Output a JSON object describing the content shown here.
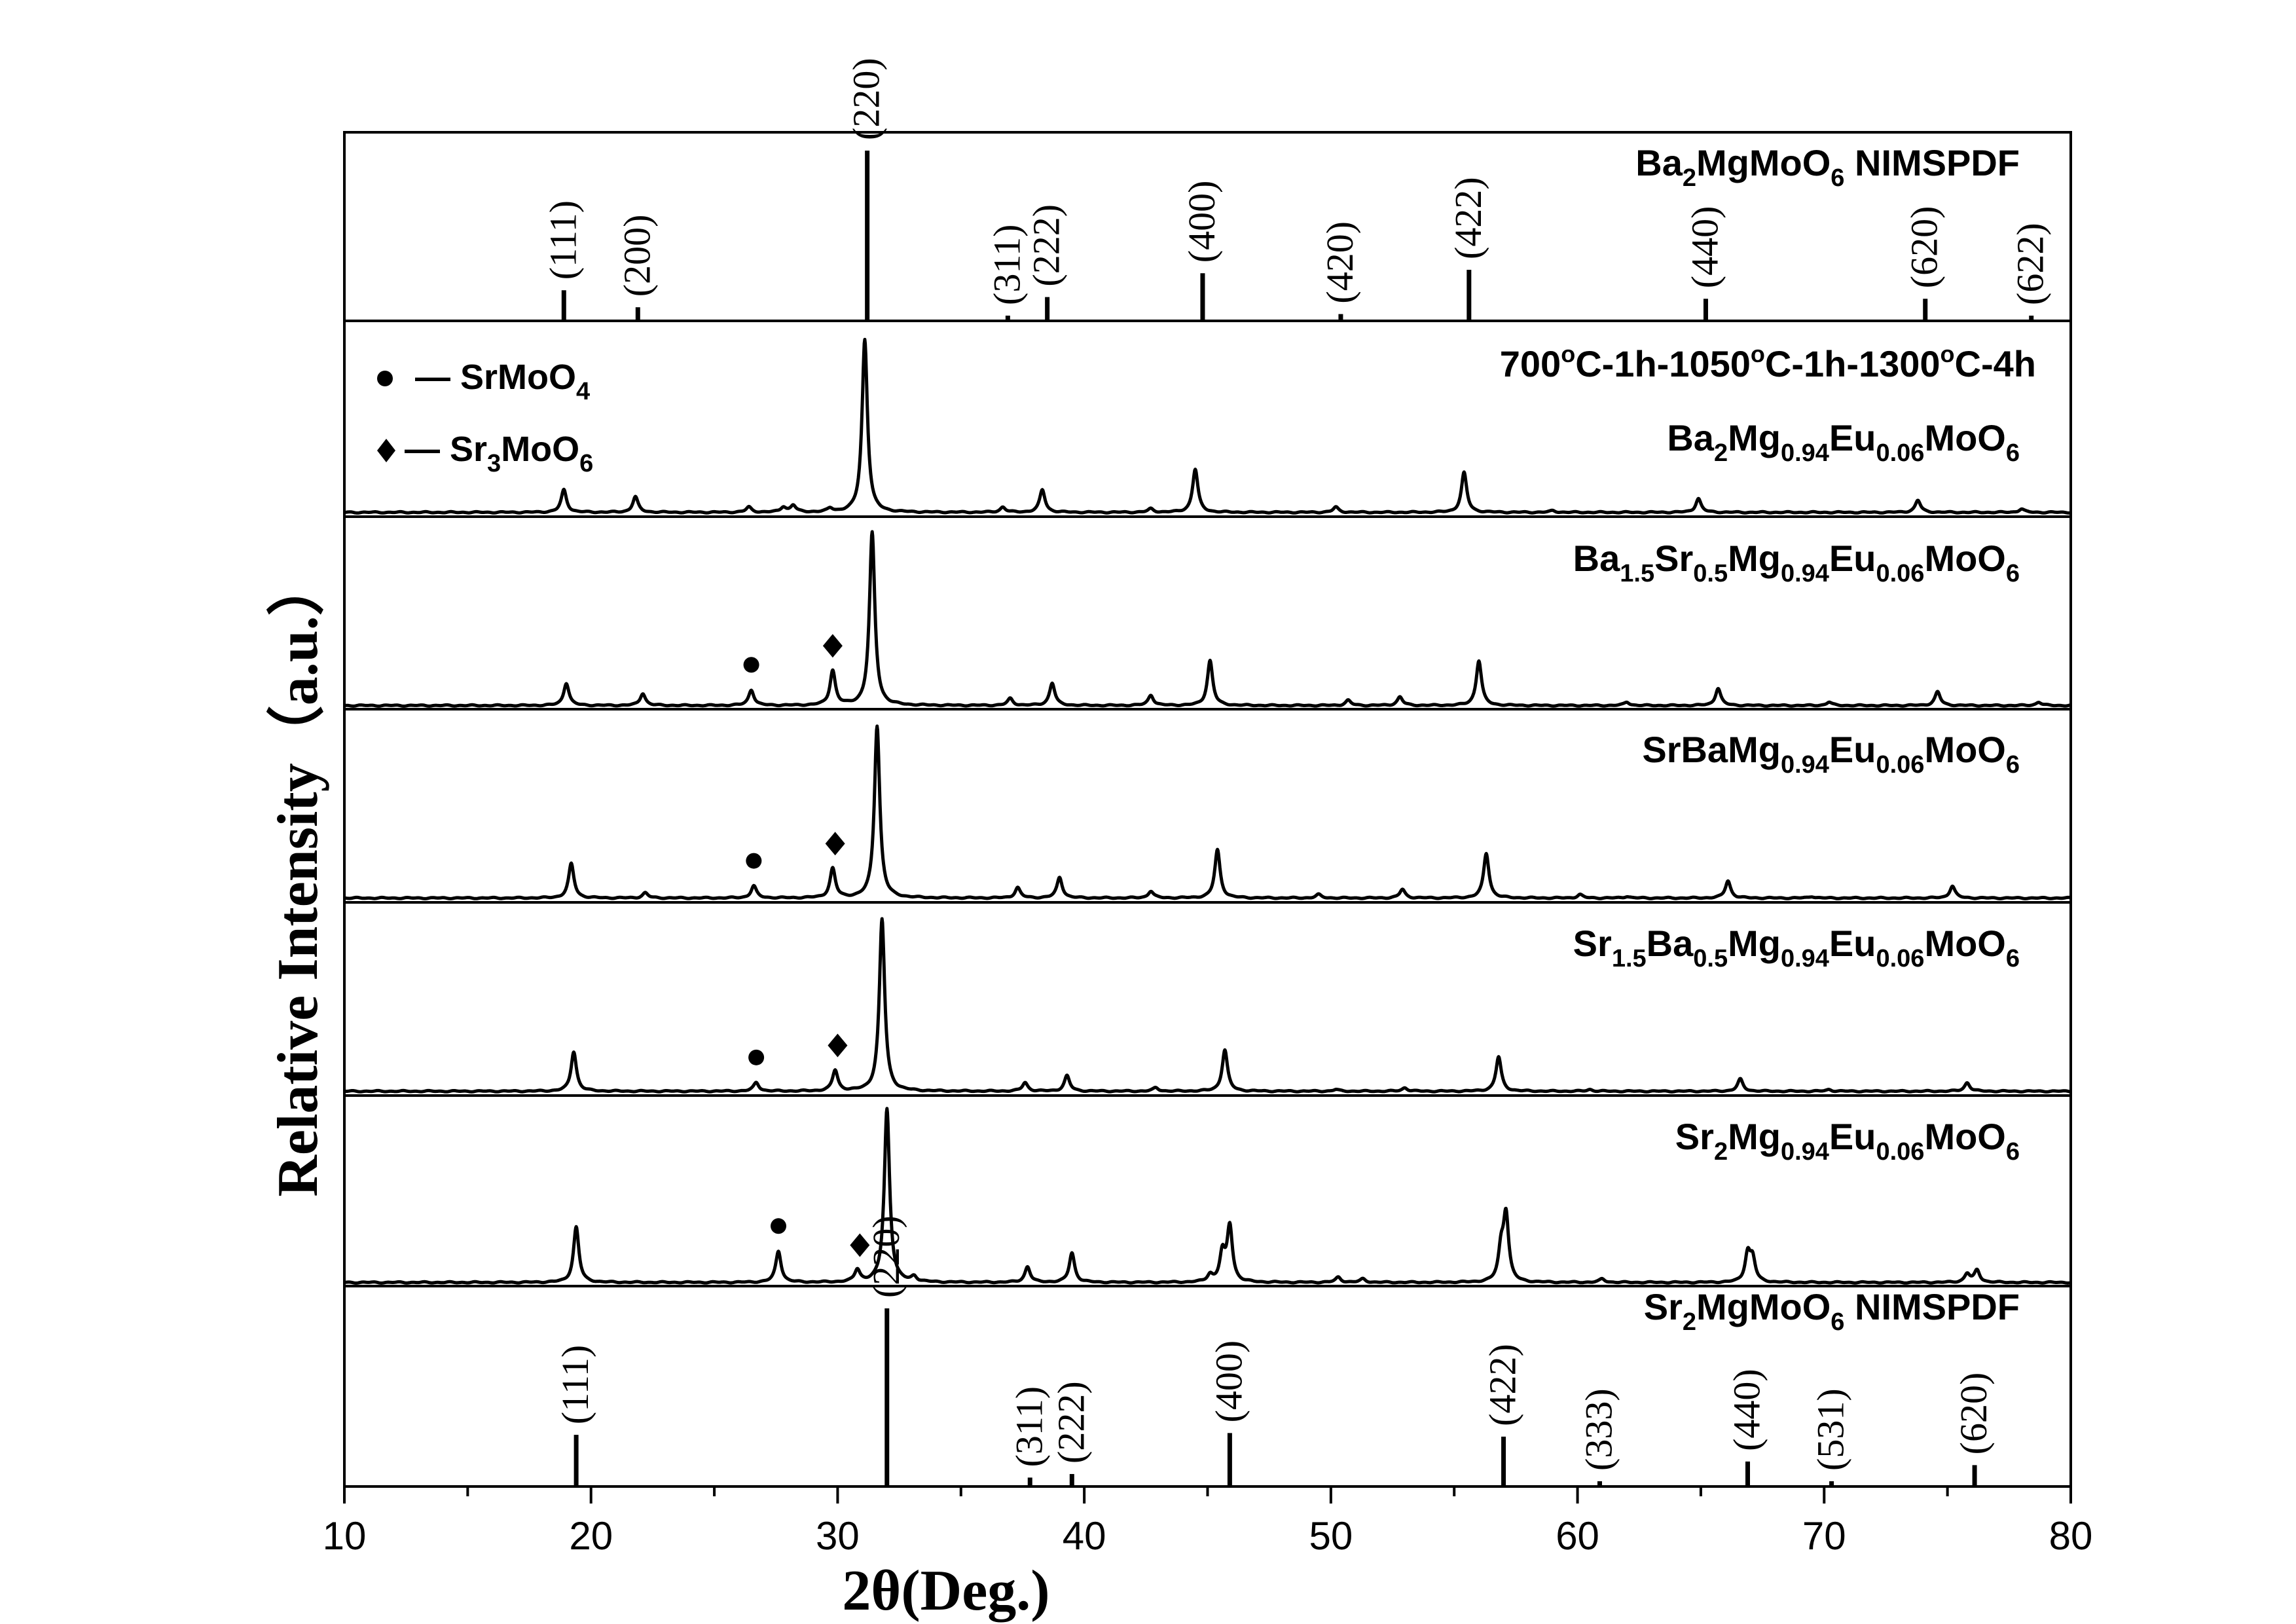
{
  "chart_data": {
    "type": "line",
    "xlabel": "2θ(Deg.)",
    "ylabel": "Relative Intensity（a.u.）",
    "xlim": [
      10,
      80
    ],
    "x_ticks": [
      "10",
      "20",
      "30",
      "40",
      "50",
      "60",
      "70",
      "80"
    ],
    "grid": false,
    "legend": {
      "position": "top-left",
      "entries": [
        {
          "symbol": "circle",
          "label": "— SrMoO",
          "sub": "4"
        },
        {
          "symbol": "diamond",
          "label": "— Sr",
          "sub1": "3",
          "label2": "MoO",
          "sub2": "6"
        }
      ]
    },
    "condition_label": {
      "t1": "700",
      "deg1": "o",
      "t2": "C-1h-1050",
      "deg2": "o",
      "t3": "C-1h-1300",
      "deg3": "o",
      "t4": "C-4h"
    },
    "reference_top": {
      "name_parts": [
        "Ba",
        "2",
        "MgMoO",
        "6",
        " NIMSPDF"
      ],
      "peaks": [
        {
          "x": 18.9,
          "hkl": "(111)",
          "h": 0.18
        },
        {
          "x": 21.9,
          "hkl": "(200)",
          "h": 0.08
        },
        {
          "x": 31.2,
          "hkl": "(220)",
          "h": 1.0
        },
        {
          "x": 36.9,
          "hkl": "(311)",
          "h": 0.03
        },
        {
          "x": 38.5,
          "hkl": "(222)",
          "h": 0.14
        },
        {
          "x": 44.8,
          "hkl": "(400)",
          "h": 0.28
        },
        {
          "x": 50.4,
          "hkl": "(420)",
          "h": 0.04
        },
        {
          "x": 55.6,
          "hkl": "(422)",
          "h": 0.3
        },
        {
          "x": 65.2,
          "hkl": "(440)",
          "h": 0.13
        },
        {
          "x": 74.1,
          "hkl": "(620)",
          "h": 0.13
        },
        {
          "x": 78.4,
          "hkl": "(622)",
          "h": 0.03
        }
      ]
    },
    "reference_bottom": {
      "name_parts": [
        "Sr",
        "2",
        "MgMoO",
        "6",
        " NIMSPDF"
      ],
      "peaks": [
        {
          "x": 19.4,
          "hkl": "(111)",
          "h": 0.29
        },
        {
          "x": 32.0,
          "hkl": "(220)",
          "h": 1.0
        },
        {
          "x": 37.8,
          "hkl": "(311)",
          "h": 0.05
        },
        {
          "x": 39.5,
          "hkl": "(222)",
          "h": 0.07
        },
        {
          "x": 45.9,
          "hkl": "(400)",
          "h": 0.3
        },
        {
          "x": 57.0,
          "hkl": "(422)",
          "h": 0.28
        },
        {
          "x": 60.9,
          "hkl": "(333)",
          "h": 0.02
        },
        {
          "x": 66.9,
          "hkl": "(440)",
          "h": 0.14
        },
        {
          "x": 70.3,
          "hkl": "(531)",
          "h": 0.02
        },
        {
          "x": 76.1,
          "hkl": "(620)",
          "h": 0.12
        }
      ]
    },
    "series": [
      {
        "name_parts": [
          "Ba",
          "2",
          "Mg",
          "0.94",
          "Eu",
          "0.06",
          "MoO",
          "6"
        ],
        "peaks": [
          [
            18.9,
            0.13
          ],
          [
            21.8,
            0.09
          ],
          [
            26.4,
            0.03
          ],
          [
            27.8,
            0.03
          ],
          [
            28.2,
            0.04
          ],
          [
            29.7,
            0.02
          ],
          [
            31.1,
            1.0
          ],
          [
            36.7,
            0.03
          ],
          [
            38.3,
            0.13
          ],
          [
            42.7,
            0.02
          ],
          [
            44.5,
            0.25
          ],
          [
            50.2,
            0.03
          ],
          [
            55.4,
            0.23
          ],
          [
            59.0,
            0.01
          ],
          [
            64.9,
            0.08
          ],
          [
            73.8,
            0.07
          ],
          [
            78.0,
            0.02
          ]
        ],
        "markers": []
      },
      {
        "name_parts": [
          "Ba",
          "1.5",
          "Sr",
          "0.5",
          "Mg",
          "0.94",
          "Eu",
          "0.06",
          "MoO",
          "6"
        ],
        "peaks": [
          [
            19.0,
            0.13
          ],
          [
            22.1,
            0.07
          ],
          [
            26.5,
            0.09
          ],
          [
            29.8,
            0.2
          ],
          [
            31.4,
            1.0
          ],
          [
            37.0,
            0.04
          ],
          [
            38.7,
            0.13
          ],
          [
            42.7,
            0.06
          ],
          [
            45.1,
            0.26
          ],
          [
            50.7,
            0.03
          ],
          [
            52.8,
            0.05
          ],
          [
            56.0,
            0.26
          ],
          [
            62.0,
            0.02
          ],
          [
            65.7,
            0.1
          ],
          [
            70.2,
            0.02
          ],
          [
            74.6,
            0.08
          ],
          [
            78.7,
            0.02
          ]
        ],
        "markers": [
          {
            "type": "circle",
            "x": 26.5
          },
          {
            "type": "diamond",
            "x": 29.8
          }
        ]
      },
      {
        "name_parts": [
          "SrBaMg",
          "0.94",
          "Eu",
          "0.06",
          "MoO",
          "6"
        ],
        "peaks": [
          [
            19.2,
            0.2
          ],
          [
            22.2,
            0.03
          ],
          [
            26.6,
            0.07
          ],
          [
            29.8,
            0.17
          ],
          [
            31.6,
            1.0
          ],
          [
            37.3,
            0.06
          ],
          [
            39.0,
            0.12
          ],
          [
            42.7,
            0.04
          ],
          [
            45.4,
            0.28
          ],
          [
            49.5,
            0.02
          ],
          [
            52.9,
            0.05
          ],
          [
            56.3,
            0.26
          ],
          [
            60.1,
            0.02
          ],
          [
            62.0,
            0.01
          ],
          [
            66.1,
            0.1
          ],
          [
            69.5,
            0.01
          ],
          [
            75.2,
            0.07
          ]
        ],
        "markers": [
          {
            "type": "circle",
            "x": 26.6
          },
          {
            "type": "diamond",
            "x": 29.9
          }
        ]
      },
      {
        "name_parts": [
          "Sr",
          "1.5",
          "Ba",
          "0.5",
          "Mg",
          "0.94",
          "Eu",
          "0.06",
          "MoO",
          "6"
        ],
        "peaks": [
          [
            19.3,
            0.23
          ],
          [
            26.7,
            0.05
          ],
          [
            29.9,
            0.12
          ],
          [
            31.8,
            1.0
          ],
          [
            37.6,
            0.05
          ],
          [
            39.3,
            0.09
          ],
          [
            42.9,
            0.02
          ],
          [
            45.7,
            0.24
          ],
          [
            50.2,
            0.01
          ],
          [
            53.0,
            0.02
          ],
          [
            56.8,
            0.2
          ],
          [
            60.5,
            0.01
          ],
          [
            66.6,
            0.07
          ],
          [
            70.2,
            0.01
          ],
          [
            75.8,
            0.05
          ]
        ],
        "markers": [
          {
            "type": "circle",
            "x": 26.7
          },
          {
            "type": "diamond",
            "x": 30.0
          }
        ]
      },
      {
        "name_parts": [
          "Sr",
          "2",
          "Mg",
          "0.94",
          "Eu",
          "0.06",
          "MoO",
          "6"
        ],
        "peaks": [
          [
            19.4,
            0.32
          ],
          [
            27.6,
            0.18
          ],
          [
            30.8,
            0.07
          ],
          [
            32.0,
            1.0
          ],
          [
            33.1,
            0.03
          ],
          [
            37.7,
            0.09
          ],
          [
            39.5,
            0.17
          ],
          [
            45.1,
            0.04
          ],
          [
            45.6,
            0.16
          ],
          [
            45.9,
            0.32
          ],
          [
            50.3,
            0.03
          ],
          [
            51.3,
            0.02
          ],
          [
            56.9,
            0.17
          ],
          [
            57.1,
            0.38
          ],
          [
            61.0,
            0.02
          ],
          [
            66.9,
            0.16
          ],
          [
            67.1,
            0.13
          ],
          [
            75.8,
            0.05
          ],
          [
            76.2,
            0.07
          ]
        ],
        "markers": [
          {
            "type": "circle",
            "x": 27.6
          },
          {
            "type": "diamond",
            "x": 30.9
          }
        ]
      }
    ]
  }
}
